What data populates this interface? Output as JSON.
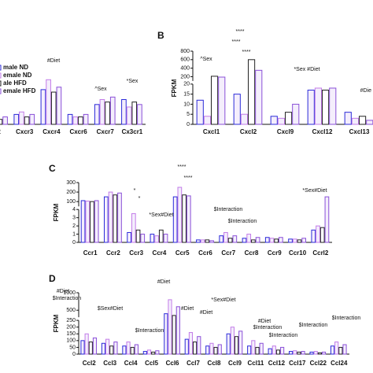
{
  "chart_data": [
    {
      "type": "bar",
      "label": null,
      "categories": [
        "r2",
        "Cxcr3",
        "Cxcr4",
        "Cxcr6",
        "Cxcr7",
        "Cx3cr1"
      ],
      "series": [
        {
          "name": "male ND",
          "color": "#2b2bd9",
          "values": [
            3,
            4,
            14,
            4,
            8,
            10
          ]
        },
        {
          "name": "emale ND",
          "color": "#c27be8",
          "values": [
            4,
            5,
            18,
            3,
            10,
            7
          ]
        },
        {
          "name": "ale HFD",
          "color": "#222222",
          "values": [
            2,
            3,
            13,
            3,
            9,
            9
          ]
        },
        {
          "name": "emale HFD",
          "color": "#8a4fd8",
          "values": [
            3,
            4,
            15,
            4,
            11,
            8
          ]
        }
      ],
      "ylim": [
        0,
        20
      ],
      "annotations": [
        "#Diet",
        "^Sex",
        "*Sex"
      ]
    },
    {
      "type": "bar",
      "label": "B",
      "ylabel": "FPKM",
      "categories": [
        "Cxcl1",
        "Cxcl2",
        "Cxcl9",
        "Cxcl12",
        "Cxcl13"
      ],
      "series": [
        {
          "color": "#2b2bd9",
          "values": [
            12,
            15,
            4,
            17,
            6
          ]
        },
        {
          "color": "#c27be8",
          "values": [
            4,
            5,
            3,
            18,
            3
          ]
        },
        {
          "color": "#222222",
          "values": [
            210,
            600,
            6,
            17,
            4
          ]
        },
        {
          "color": "#8a4fd8",
          "values": [
            190,
            350,
            10,
            18,
            2
          ]
        }
      ],
      "ylim": [
        0,
        800
      ],
      "ybreak": [
        20,
        100
      ],
      "yticks": [
        0,
        5,
        10,
        15,
        20,
        200,
        400,
        600,
        800
      ],
      "annotations": [
        "^Sex",
        "****",
        "****",
        "****",
        "*Sex #Diet",
        "#Die"
      ]
    },
    {
      "type": "bar",
      "label": "C",
      "ylabel": "FPKM",
      "categories": [
        "Ccr1",
        "Ccr2",
        "Ccr3",
        "Ccr4",
        "Ccr5",
        "Ccr6",
        "Ccr7",
        "Ccr8",
        "Ccr9",
        "Ccr10",
        "Ccrl2"
      ],
      "series": [
        {
          "color": "#2b2bd9",
          "values": [
            110,
            150,
            1.2,
            1,
            150,
            0.3,
            0.8,
            0.5,
            0.6,
            0.4,
            1.5
          ]
        },
        {
          "color": "#c27be8",
          "values": [
            105,
            200,
            3.5,
            0.8,
            250,
            0.3,
            1.2,
            1,
            0.5,
            0.4,
            2
          ]
        },
        {
          "color": "#222222",
          "values": [
            100,
            170,
            1.5,
            1.5,
            170,
            0.3,
            0.5,
            0.3,
            0.4,
            0.3,
            1.8
          ]
        },
        {
          "color": "#8a4fd8",
          "values": [
            110,
            190,
            1,
            1,
            160,
            0.2,
            0.8,
            0.6,
            0.6,
            0.5,
            150
          ]
        }
      ],
      "ylim": [
        0,
        300
      ],
      "ybreak": [
        4,
        50
      ],
      "yticks": [
        0,
        1,
        2,
        3,
        4,
        100,
        200,
        300
      ],
      "annotations": [
        "*",
        "*",
        "*Sex#Diet",
        "****",
        "****",
        "$Interaction",
        "$Interaction",
        "*Sex#Diet"
      ]
    },
    {
      "type": "bar",
      "label": "D",
      "ylabel": "FPKM",
      "categories": [
        "Ccl2",
        "Ccl3",
        "Ccl4",
        "Ccl5",
        "Ccl6",
        "Ccl7",
        "Ccl8",
        "Ccl9",
        "Ccl11",
        "Ccl12",
        "Ccl17",
        "Ccl22",
        "Ccl24"
      ],
      "series": [
        {
          "color": "#2b2bd9",
          "values": [
            100,
            80,
            60,
            20,
            400,
            110,
            60,
            150,
            60,
            40,
            20,
            15,
            60
          ]
        },
        {
          "color": "#c27be8",
          "values": [
            150,
            110,
            90,
            30,
            800,
            160,
            80,
            200,
            100,
            60,
            25,
            20,
            90
          ]
        },
        {
          "color": "#222222",
          "values": [
            90,
            60,
            50,
            15,
            350,
            90,
            50,
            130,
            50,
            30,
            15,
            10,
            50
          ]
        },
        {
          "color": "#8a4fd8",
          "values": [
            120,
            90,
            70,
            25,
            600,
            130,
            70,
            170,
            80,
            50,
            20,
            15,
            70
          ]
        }
      ],
      "ylim": [
        0,
        1000
      ],
      "ybreak": [
        250,
        300
      ],
      "yticks": [
        0,
        50,
        100,
        150,
        200,
        250,
        500,
        1000
      ],
      "annotations": [
        "#Diet",
        "$Interaction",
        "$Sex#Diet",
        "#Diet",
        "$Interaction",
        "#Diet",
        "#Diet",
        "*Sex#Diet",
        "#Diet",
        "$Interaction",
        "$Interaction",
        "$Interaction",
        "$Interaction"
      ]
    }
  ]
}
